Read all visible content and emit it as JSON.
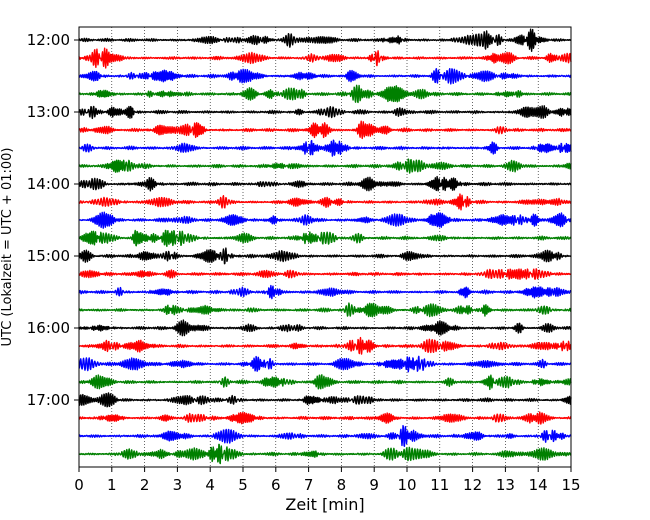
{
  "chart_data": {
    "type": "line",
    "subtype": "seismic helicorder (one trace per 15-minute row)",
    "title": "",
    "xlabel": "Zeit  [min]",
    "ylabel": "UTC (Lokalzeit = UTC + 01:00)",
    "xlim": [
      0,
      15
    ],
    "x_ticks": [
      "0",
      "1",
      "2",
      "3",
      "4",
      "5",
      "6",
      "7",
      "8",
      "9",
      "10",
      "11",
      "12",
      "13",
      "14",
      "15"
    ],
    "y_tick_labels": [
      "12:00",
      "13:00",
      "14:00",
      "15:00",
      "16:00",
      "17:00"
    ],
    "rows_per_hour": 4,
    "row_count": 24,
    "row_start_times": [
      "12:00",
      "12:15",
      "12:30",
      "12:45",
      "13:00",
      "13:15",
      "13:30",
      "13:45",
      "14:00",
      "14:15",
      "14:30",
      "14:45",
      "15:00",
      "15:15",
      "15:30",
      "15:45",
      "16:00",
      "16:15",
      "16:30",
      "16:45",
      "17:00",
      "17:15",
      "17:30",
      "17:45"
    ],
    "trace_colors": [
      "#000000",
      "#ff0000",
      "#0000ff",
      "#008000"
    ],
    "grid": {
      "vertical_dotted_every_minute": true
    },
    "notes": "Trace amplitudes are continuous low-level noise with intermittent wave packets; waveform is synthetic."
  }
}
